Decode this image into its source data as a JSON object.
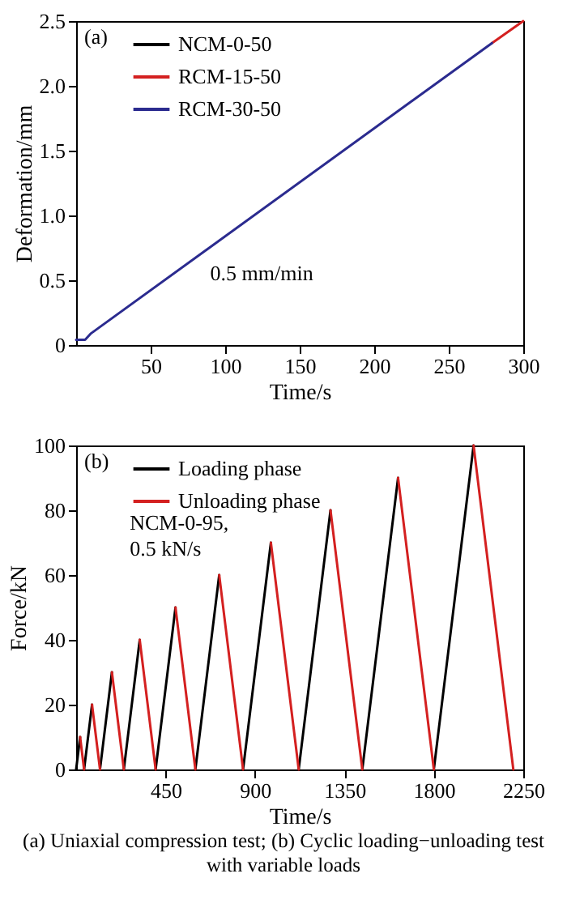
{
  "chart_data": [
    {
      "type": "line",
      "xlabel": "Time/s",
      "ylabel": "Deformation/mm",
      "legend": "top left",
      "grid": false,
      "series": [
        {
          "name": "NCM-0-50",
          "color": "#000000"
        },
        {
          "name": "RCM-15-50",
          "color": "#d42020",
          "x": [
            279,
            300
          ],
          "values": [
            2.33,
            2.5
          ]
        },
        {
          "name": "RCM-30-50",
          "color": "#2b2b8f",
          "x": [
            0,
            6,
            10,
            279
          ],
          "values": [
            0.04,
            0.04,
            0.09,
            2.33
          ]
        }
      ],
      "xlim": [
        0,
        300
      ],
      "xticks": [
        50,
        100,
        150,
        200,
        250,
        300
      ],
      "ylim": [
        0,
        2.5
      ],
      "yticks": [
        0,
        0.5,
        {
          "value": 1,
          "label": "1.0"
        },
        1.5,
        {
          "value": 2,
          "label": "2.0"
        },
        2.5
      ],
      "annotations": [
        "(a)",
        "0.5 mm/min"
      ]
    },
    {
      "type": "line",
      "xlabel": "Time/s",
      "ylabel": "Force/kN",
      "legend": "top left",
      "grid": false,
      "series": [
        {
          "name": "Loading phase",
          "color": "#000000",
          "x": [
            0,
            20,
            30,
            40,
            80,
            100,
            120,
            180,
            210,
            240,
            320,
            360,
            400,
            500,
            550,
            600,
            720,
            780,
            840,
            980,
            1050,
            1120,
            1280,
            1360,
            1440,
            1620,
            1710,
            1800,
            2000
          ],
          "values": [
            0,
            10,
            null,
            0,
            20,
            null,
            0,
            30,
            null,
            0,
            40,
            null,
            0,
            50,
            null,
            0,
            60,
            null,
            0,
            70,
            null,
            0,
            80,
            null,
            0,
            90,
            null,
            0,
            100
          ]
        },
        {
          "name": "Unloading phase",
          "color": "#d42020",
          "x": [
            20,
            40,
            60,
            80,
            120,
            150,
            180,
            240,
            280,
            320,
            400,
            450,
            500,
            600,
            660,
            720,
            840,
            910,
            980,
            1120,
            1200,
            1280,
            1440,
            1530,
            1620,
            1800,
            1900,
            2000,
            2200
          ],
          "values": [
            10,
            0,
            null,
            20,
            0,
            null,
            30,
            0,
            null,
            40,
            0,
            null,
            50,
            0,
            null,
            60,
            0,
            null,
            70,
            0,
            null,
            80,
            0,
            null,
            90,
            0,
            null,
            100,
            0
          ]
        }
      ],
      "xlim": [
        0,
        2250
      ],
      "xticks": [
        450,
        900,
        1350,
        1800,
        2250
      ],
      "ylim": [
        0,
        100
      ],
      "yticks": [
        0,
        20,
        40,
        60,
        80,
        100
      ],
      "annotations": [
        "(b)",
        "NCM-0-95,\n0.5 kN/s",
        "(a) Uniaxial compression test; (b) Cyclic loading−unloading test with variable loads"
      ]
    }
  ]
}
